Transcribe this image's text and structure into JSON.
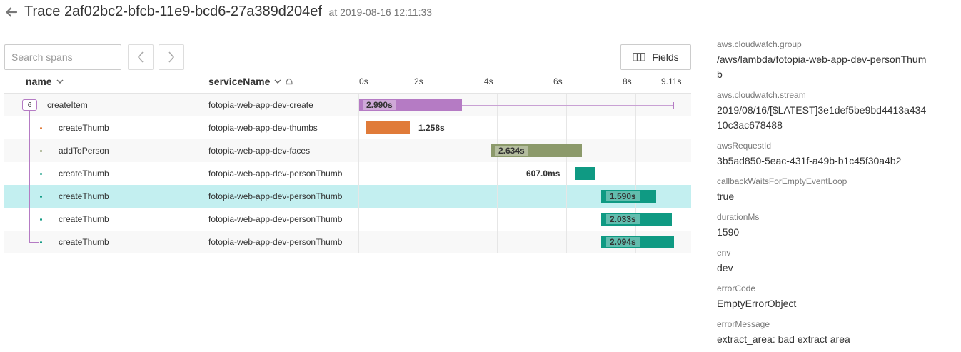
{
  "header": {
    "title": "Trace 2af02bc2-bfcb-11e9-bcd6-27a389d204ef",
    "timestamp": "at 2019-08-16 12:11:33"
  },
  "toolbar": {
    "search_placeholder": "Search spans",
    "fields_label": "Fields"
  },
  "table": {
    "col_name": "name",
    "col_service": "serviceName",
    "ticks": [
      "0s",
      "2s",
      "4s",
      "6s",
      "8s",
      "9.11s"
    ]
  },
  "spans": [
    {
      "name": "createItem",
      "service": "fotopia-web-app-dev-create",
      "duration": "2.990s",
      "child_count": "6",
      "color": "#b57bc4"
    },
    {
      "name": "createThumb",
      "service": "fotopia-web-app-dev-thumbs",
      "duration": "1.258s",
      "color": "#e07b39"
    },
    {
      "name": "addToPerson",
      "service": "fotopia-web-app-dev-faces",
      "duration": "2.634s",
      "color": "#8c9a6b"
    },
    {
      "name": "createThumb",
      "service": "fotopia-web-app-dev-personThumb",
      "duration": "607.0ms",
      "color": "#0f9a83"
    },
    {
      "name": "createThumb",
      "service": "fotopia-web-app-dev-personThumb",
      "duration": "1.590s",
      "color": "#0f9a83"
    },
    {
      "name": "createThumb",
      "service": "fotopia-web-app-dev-personThumb",
      "duration": "2.033s",
      "color": "#0f9a83"
    },
    {
      "name": "createThumb",
      "service": "fotopia-web-app-dev-personThumb",
      "duration": "2.094s",
      "color": "#0f9a83"
    }
  ],
  "details": [
    {
      "key": "aws.cloudwatch.group",
      "value": "/aws/lambda/fotopia-web-app-dev-personThumb"
    },
    {
      "key": "aws.cloudwatch.stream",
      "value": "2019/08/16/[$LATEST]3e1def5be9bd4413a43410c3ac678488"
    },
    {
      "key": "awsRequestId",
      "value": "3b5ad850-5eac-431f-a49b-b1c45f30a4b2"
    },
    {
      "key": "callbackWaitsForEmptyEventLoop",
      "value": "true"
    },
    {
      "key": "durationMs",
      "value": "1590"
    },
    {
      "key": "env",
      "value": "dev"
    },
    {
      "key": "errorCode",
      "value": "EmptyErrorObject"
    },
    {
      "key": "errorMessage",
      "value": "extract_area: bad extract area"
    }
  ],
  "icons": {
    "back": "back-arrow-icon",
    "prev": "chevron-left-icon",
    "next": "chevron-right-icon",
    "fields": "columns-icon",
    "sort": "chevron-down-icon"
  }
}
